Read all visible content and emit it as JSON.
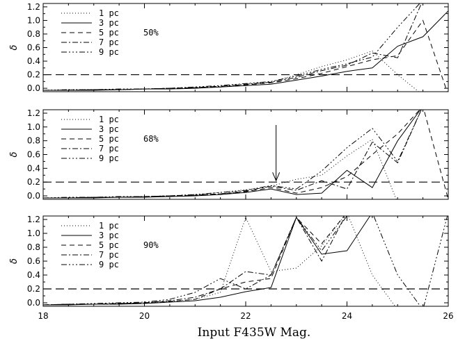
{
  "chart_data": {
    "type": "line",
    "title": "",
    "xlabel": "Input F435W Mag.",
    "ylabel": "δ",
    "xlim": [
      18,
      26
    ],
    "ylim": [
      -0.05,
      1.25
    ],
    "xticks": [
      18,
      20,
      22,
      24,
      26
    ],
    "xtick_labels": [
      "18",
      "20",
      "22",
      "24",
      "26"
    ],
    "yticks": [
      0.0,
      0.2,
      0.4,
      0.6,
      0.8,
      1.0,
      1.2
    ],
    "ytick_labels": [
      "0.0",
      "0.2",
      "0.4",
      "0.6",
      "0.8",
      "1.0",
      "1.2"
    ],
    "reference_line_y": 0.2,
    "x": [
      18.0,
      18.5,
      19.0,
      19.5,
      20.0,
      20.5,
      21.0,
      21.5,
      22.0,
      22.5,
      23.0,
      23.5,
      24.0,
      24.5,
      25.0,
      25.5,
      26.0
    ],
    "legend_position": "top-left",
    "series_styles": [
      {
        "name": "1 pc",
        "dash": "1,3"
      },
      {
        "name": "3 pc",
        "dash": ""
      },
      {
        "name": "5 pc",
        "dash": "7,5"
      },
      {
        "name": "7 pc",
        "dash": "8,3,2,3"
      },
      {
        "name": "9 pc",
        "dash": "8,3,2,3,2,3,2,3"
      }
    ],
    "panels": [
      {
        "label": "50%",
        "series": [
          {
            "name": "1 pc",
            "values": [
              -0.03,
              -0.02,
              -0.02,
              -0.02,
              -0.01,
              0.0,
              0.01,
              0.03,
              0.06,
              0.09,
              0.2,
              0.32,
              0.42,
              0.55,
              0.2,
              -0.1,
              -0.1
            ]
          },
          {
            "name": "3 pc",
            "values": [
              -0.03,
              -0.03,
              -0.03,
              -0.02,
              -0.01,
              -0.01,
              0.0,
              0.02,
              0.04,
              0.06,
              0.12,
              0.18,
              0.25,
              0.3,
              0.62,
              0.76,
              1.14
            ]
          },
          {
            "name": "5 pc",
            "values": [
              -0.03,
              -0.03,
              -0.02,
              -0.02,
              -0.01,
              0.0,
              0.01,
              0.02,
              0.05,
              0.08,
              0.14,
              0.22,
              0.32,
              0.42,
              0.48,
              1.0,
              -0.1
            ]
          },
          {
            "name": "7 pc",
            "values": [
              -0.03,
              -0.03,
              -0.02,
              -0.02,
              -0.01,
              0.0,
              0.01,
              0.03,
              0.06,
              0.09,
              0.16,
              0.26,
              0.34,
              0.52,
              0.45,
              1.3,
              1.3
            ]
          },
          {
            "name": "9 pc",
            "values": [
              -0.03,
              -0.02,
              -0.02,
              -0.01,
              -0.01,
              0.0,
              0.02,
              0.04,
              0.07,
              0.1,
              0.18,
              0.28,
              0.36,
              0.46,
              0.9,
              1.3,
              1.3
            ]
          }
        ]
      },
      {
        "label": "68%",
        "arrow_x": 22.6,
        "series": [
          {
            "name": "1 pc",
            "values": [
              -0.03,
              -0.03,
              -0.02,
              -0.02,
              -0.01,
              0.0,
              0.02,
              0.05,
              0.09,
              0.14,
              0.24,
              0.3,
              0.58,
              0.82,
              -0.1,
              -0.1,
              -0.1
            ]
          },
          {
            "name": "3 pc",
            "values": [
              -0.03,
              -0.03,
              -0.03,
              -0.02,
              -0.02,
              -0.01,
              0.0,
              0.02,
              0.05,
              0.1,
              0.02,
              0.04,
              0.37,
              0.12,
              0.8,
              1.3,
              1.3
            ]
          },
          {
            "name": "5 pc",
            "values": [
              -0.03,
              -0.03,
              -0.02,
              -0.02,
              -0.01,
              0.0,
              0.01,
              0.03,
              0.06,
              0.12,
              0.04,
              0.12,
              0.28,
              0.6,
              0.9,
              1.3,
              -0.05
            ]
          },
          {
            "name": "7 pc",
            "values": [
              -0.03,
              -0.03,
              -0.02,
              -0.02,
              -0.01,
              0.0,
              0.01,
              0.03,
              0.07,
              0.14,
              0.08,
              0.22,
              0.1,
              0.78,
              0.48,
              1.3,
              1.3
            ]
          },
          {
            "name": "9 pc",
            "values": [
              -0.03,
              -0.02,
              -0.02,
              -0.01,
              -0.01,
              0.0,
              0.02,
              0.05,
              0.08,
              0.15,
              0.1,
              0.36,
              0.7,
              0.98,
              0.5,
              1.3,
              1.3
            ]
          }
        ]
      },
      {
        "label": "90%",
        "series": [
          {
            "name": "1 pc",
            "values": [
              -0.03,
              -0.02,
              -0.02,
              -0.01,
              0.0,
              0.02,
              0.05,
              0.15,
              1.23,
              0.45,
              0.5,
              0.82,
              1.3,
              0.4,
              -0.1,
              -0.1,
              -0.1
            ]
          },
          {
            "name": "3 pc",
            "values": [
              -0.03,
              -0.03,
              -0.02,
              -0.02,
              -0.01,
              0.01,
              0.03,
              0.08,
              0.16,
              0.22,
              1.23,
              0.7,
              0.75,
              1.3,
              1.3,
              1.3,
              1.3
            ]
          },
          {
            "name": "5 pc",
            "values": [
              -0.03,
              -0.02,
              -0.02,
              -0.01,
              0.0,
              0.02,
              0.05,
              0.2,
              0.3,
              0.35,
              1.23,
              0.85,
              1.3,
              1.3,
              1.3,
              1.3,
              1.3
            ]
          },
          {
            "name": "7 pc",
            "values": [
              -0.03,
              -0.02,
              -0.02,
              -0.01,
              0.0,
              0.03,
              0.08,
              0.2,
              0.45,
              0.4,
              1.23,
              0.6,
              1.3,
              1.3,
              1.3,
              1.3,
              1.3
            ]
          },
          {
            "name": "9 pc",
            "values": [
              -0.03,
              -0.02,
              -0.01,
              0.0,
              0.01,
              0.05,
              0.15,
              0.35,
              0.2,
              0.4,
              1.23,
              0.75,
              1.25,
              1.3,
              0.4,
              -0.1,
              1.3
            ]
          }
        ]
      }
    ]
  }
}
